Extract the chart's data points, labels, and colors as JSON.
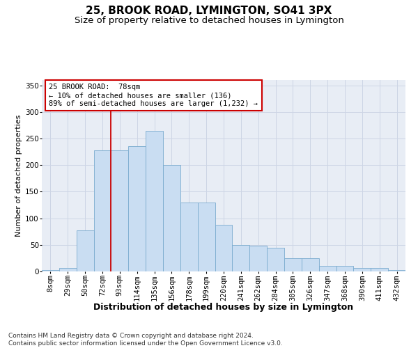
{
  "title": "25, BROOK ROAD, LYMINGTON, SO41 3PX",
  "subtitle": "Size of property relative to detached houses in Lymington",
  "xlabel": "Distribution of detached houses by size in Lymington",
  "ylabel": "Number of detached properties",
  "categories": [
    "8sqm",
    "29sqm",
    "50sqm",
    "72sqm",
    "93sqm",
    "114sqm",
    "135sqm",
    "156sqm",
    "178sqm",
    "199sqm",
    "220sqm",
    "241sqm",
    "262sqm",
    "284sqm",
    "305sqm",
    "326sqm",
    "347sqm",
    "368sqm",
    "390sqm",
    "411sqm",
    "432sqm"
  ],
  "values": [
    2,
    7,
    77,
    228,
    228,
    235,
    265,
    200,
    130,
    130,
    88,
    50,
    48,
    45,
    25,
    25,
    11,
    10,
    7,
    6,
    3
  ],
  "bar_color": "#c9ddf2",
  "bar_edge_color": "#7aabce",
  "red_line_x": 3.5,
  "annotation_text": "25 BROOK ROAD:  78sqm\n← 10% of detached houses are smaller (136)\n89% of semi-detached houses are larger (1,232) →",
  "annotation_box_color": "#ffffff",
  "annotation_box_edge": "#cc0000",
  "footnote": "Contains HM Land Registry data © Crown copyright and database right 2024.\nContains public sector information licensed under the Open Government Licence v3.0.",
  "ylim": [
    0,
    360
  ],
  "yticks": [
    0,
    50,
    100,
    150,
    200,
    250,
    300,
    350
  ],
  "title_fontsize": 11,
  "subtitle_fontsize": 9.5,
  "xlabel_fontsize": 9,
  "ylabel_fontsize": 8,
  "tick_fontsize": 7.5,
  "annot_fontsize": 7.5,
  "footnote_fontsize": 6.5,
  "grid_color": "#cdd5e5",
  "background_color": "#e8edf5"
}
